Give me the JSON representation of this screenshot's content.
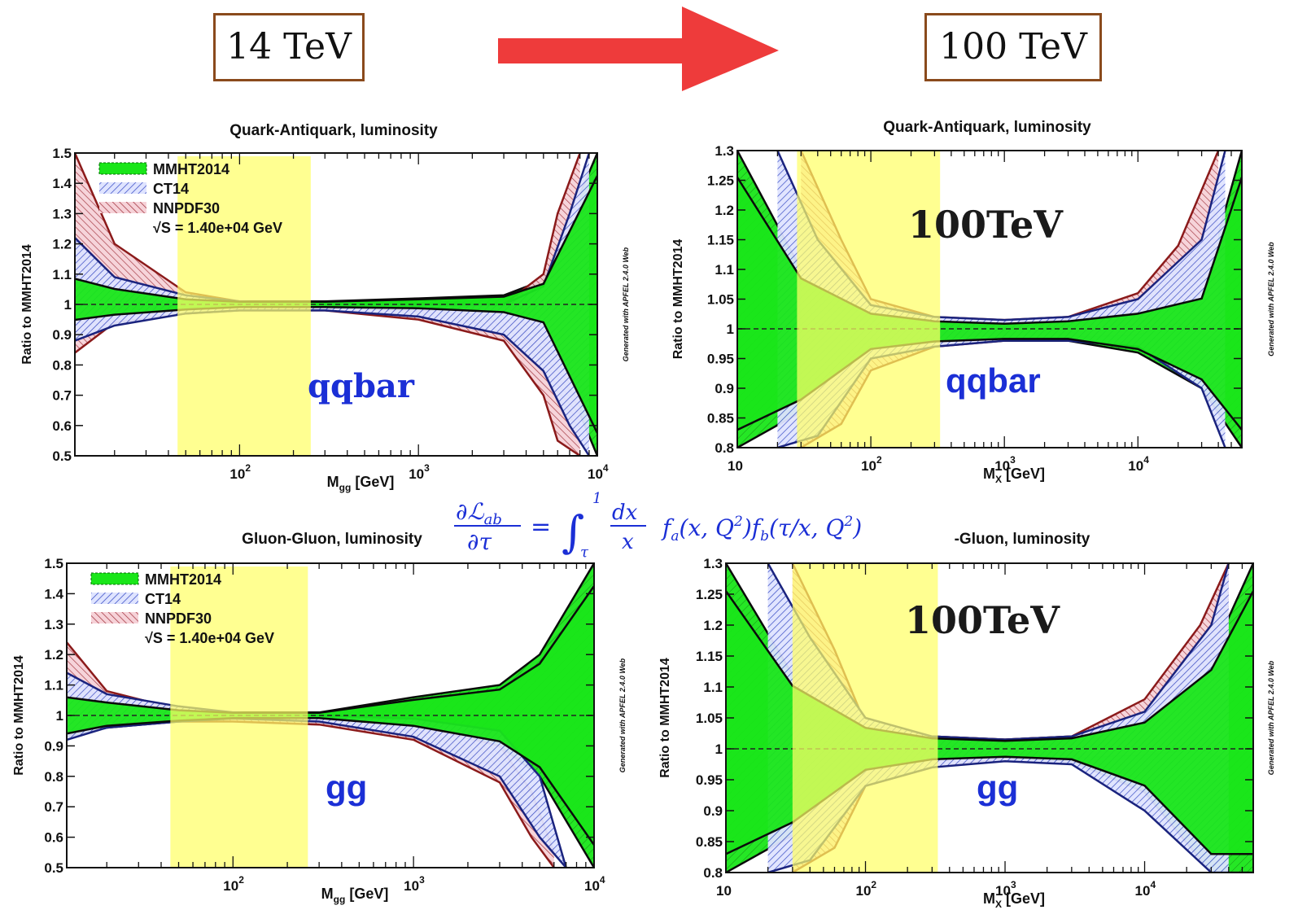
{
  "header": {
    "left_energy": "14 TeV",
    "right_energy": "100 TeV",
    "arrow_color": "#ee3b3b"
  },
  "formula": {
    "lhs_num": "∂ℒ",
    "lhs_num_sub": "ab",
    "lhs_den": "∂τ",
    "equals": "=",
    "integral": "∫",
    "upper": "1",
    "lower": "τ",
    "dx": "dx",
    "x": "x",
    "rhs": "f",
    "rhs_a": "a",
    "rhs_a_args": "(x, Q",
    "sq": "2",
    "rhs_b_prefix": ")f",
    "rhs_b": "b",
    "rhs_b_args": "(τ/x, Q",
    "close": ")"
  },
  "colors": {
    "mmht_fill": "#19e619",
    "mmht_line": "#0a0a0a",
    "ct14_line": "#1a237e",
    "ct14_fill": "#c8d2ff",
    "nnpdf_line": "#8b1a1a",
    "nnpdf_fill": "#f2c2c8",
    "highlight": "#ffff66",
    "label_blue": "#1b2fd6"
  },
  "chart_data": [
    {
      "id": "qq14",
      "type": "area",
      "title": "Quark-Antiquark, luminosity",
      "ylabel": "Ratio to MMHT2014",
      "xlabel_main": "M",
      "xlabel_sub": "gg",
      "xlabel_unit": "[GeV]",
      "xscale": "log",
      "xlim": [
        12,
        10000
      ],
      "ylim": [
        0.5,
        1.5
      ],
      "yticks": [
        "1.5",
        "1.4",
        "1.3",
        "1.2",
        "1.1",
        "1",
        "0.9",
        "0.8",
        "0.7",
        "0.6",
        "0.5"
      ],
      "xticks": [
        {
          "v": 100,
          "base": "10",
          "exp": "2"
        },
        {
          "v": 1000,
          "base": "10",
          "exp": "3"
        },
        {
          "v": 10000,
          "base": "10",
          "exp": "4"
        }
      ],
      "legend": [
        "MMHT2014",
        "CT14",
        "NNPDF30"
      ],
      "legend_sqrt": "S = 1.40e+04 GeV",
      "side_text": "Generated with APFEL 2.4.0 Web",
      "big_label": "qqbar",
      "highlight_range": [
        45,
        250
      ],
      "series": [
        {
          "name": "MMHT2014",
          "x": [
            12,
            20,
            50,
            100,
            300,
            1000,
            3000,
            5000,
            10000
          ],
          "upper": [
            1.1,
            1.06,
            1.02,
            1.01,
            1.01,
            1.02,
            1.03,
            1.08,
            1.5
          ],
          "lower": [
            0.94,
            0.96,
            0.98,
            0.99,
            0.99,
            0.985,
            0.97,
            0.93,
            0.5
          ]
        },
        {
          "name": "CT14",
          "x": [
            12,
            20,
            50,
            100,
            300,
            1000,
            3000,
            5000,
            7000,
            9000
          ],
          "upper": [
            1.22,
            1.09,
            1.03,
            1.01,
            1.0,
            1.0,
            1.0,
            1.06,
            1.3,
            1.5
          ],
          "lower": [
            0.88,
            0.93,
            0.97,
            0.98,
            0.98,
            0.96,
            0.9,
            0.78,
            0.6,
            0.5
          ]
        },
        {
          "name": "NNPDF30",
          "x": [
            12,
            20,
            50,
            100,
            300,
            1000,
            3000,
            5000,
            6000,
            8000
          ],
          "upper": [
            1.5,
            1.2,
            1.04,
            1.01,
            0.99,
            0.98,
            1.0,
            1.1,
            1.3,
            1.5
          ],
          "lower": [
            0.84,
            0.94,
            0.97,
            0.98,
            0.98,
            0.95,
            0.88,
            0.7,
            0.55,
            0.5
          ]
        }
      ]
    },
    {
      "id": "qq100",
      "type": "area",
      "title": "Quark-Antiquark, luminosity",
      "ylabel": "Ratio to MMHT2014",
      "xlabel_main": "M",
      "xlabel_sub": "X",
      "xlabel_unit": "[GeV]",
      "xscale": "log",
      "xlim": [
        10,
        60000
      ],
      "ylim": [
        0.8,
        1.3
      ],
      "yticks": [
        "1.3",
        "1.25",
        "1.2",
        "1.15",
        "1.1",
        "1.05",
        "1",
        "0.95",
        "0.9",
        "0.85",
        "0.8"
      ],
      "xticks": [
        {
          "v": 10,
          "base": "10",
          "exp": ""
        },
        {
          "v": 100,
          "base": "10",
          "exp": "2"
        },
        {
          "v": 1000,
          "base": "10",
          "exp": "3"
        },
        {
          "v": 10000,
          "base": "10",
          "exp": "4"
        }
      ],
      "side_text": "Generated with APFEL 2.4.0 Web",
      "big_label": "qqbar",
      "tev_label": "100TeV",
      "highlight_range": [
        28,
        330
      ],
      "series": [
        {
          "name": "MMHT2014",
          "x": [
            10,
            30,
            100,
            300,
            1000,
            3000,
            10000,
            30000,
            60000
          ],
          "upper": [
            1.3,
            1.1,
            1.03,
            1.015,
            1.01,
            1.015,
            1.03,
            1.06,
            1.3
          ],
          "lower": [
            0.8,
            0.86,
            0.96,
            0.975,
            0.98,
            0.98,
            0.96,
            0.9,
            0.8
          ]
        },
        {
          "name": "CT14",
          "x": [
            20,
            40,
            100,
            300,
            1000,
            3000,
            10000,
            30000,
            45000
          ],
          "upper": [
            1.3,
            1.15,
            1.04,
            1.02,
            1.015,
            1.02,
            1.05,
            1.15,
            1.3
          ],
          "lower": [
            0.8,
            0.82,
            0.95,
            0.97,
            0.98,
            0.98,
            0.97,
            0.9,
            0.8
          ]
        },
        {
          "name": "NNPDF30",
          "x": [
            30,
            60,
            100,
            300,
            1000,
            3000,
            10000,
            20000,
            40000
          ],
          "upper": [
            1.3,
            1.15,
            1.05,
            1.02,
            1.015,
            1.02,
            1.06,
            1.14,
            1.3
          ],
          "lower": [
            0.8,
            0.84,
            0.93,
            0.97,
            0.98,
            0.985,
            0.99,
            1.01,
            0.98
          ]
        }
      ]
    },
    {
      "id": "gg14",
      "type": "area",
      "title": "Gluon-Gluon, luminosity",
      "ylabel": "Ratio to MMHT2014",
      "xlabel_main": "M",
      "xlabel_sub": "gg",
      "xlabel_unit": "[GeV]",
      "xscale": "log",
      "xlim": [
        12,
        10000
      ],
      "ylim": [
        0.5,
        1.5
      ],
      "yticks": [
        "1.5",
        "1.4",
        "1.3",
        "1.2",
        "1.1",
        "1",
        "0.9",
        "0.8",
        "0.7",
        "0.6",
        "0.5"
      ],
      "xticks": [
        {
          "v": 100,
          "base": "10",
          "exp": "2"
        },
        {
          "v": 1000,
          "base": "10",
          "exp": "3"
        },
        {
          "v": 10000,
          "base": "10",
          "exp": "4"
        }
      ],
      "legend": [
        "MMHT2014",
        "CT14",
        "NNPDF30"
      ],
      "legend_sqrt": "S = 1.40e+04 GeV",
      "side_text": "Generated with APFEL 2.4.0 Web",
      "big_label": "gg",
      "highlight_range": [
        45,
        260
      ],
      "series": [
        {
          "name": "MMHT2014",
          "x": [
            12,
            20,
            50,
            100,
            300,
            1000,
            3000,
            5000,
            10000
          ],
          "upper": [
            1.07,
            1.05,
            1.02,
            1.01,
            1.01,
            1.06,
            1.1,
            1.2,
            1.5
          ],
          "lower": [
            0.93,
            0.96,
            0.98,
            0.99,
            0.99,
            0.96,
            0.9,
            0.8,
            0.5
          ]
        },
        {
          "name": "CT14",
          "x": [
            12,
            20,
            50,
            100,
            300,
            1000,
            3000,
            5000,
            7000
          ],
          "upper": [
            1.14,
            1.07,
            1.03,
            1.01,
            1.0,
            0.99,
            0.95,
            0.8,
            0.5
          ],
          "lower": [
            0.92,
            0.96,
            0.98,
            0.99,
            0.98,
            0.93,
            0.8,
            0.6,
            0.5
          ]
        },
        {
          "name": "NNPDF30",
          "x": [
            12,
            20,
            50,
            100,
            300,
            1000,
            3000,
            4500,
            6000
          ],
          "upper": [
            1.24,
            1.08,
            1.02,
            1.0,
            0.99,
            0.97,
            0.9,
            0.75,
            0.55
          ],
          "lower": [
            0.95,
            0.97,
            0.98,
            0.98,
            0.97,
            0.92,
            0.78,
            0.6,
            0.5
          ]
        }
      ]
    },
    {
      "id": "gg100",
      "type": "area",
      "title": "-Gluon, luminosity",
      "ylabel": "Ratio to MMHT2014",
      "xlabel_main": "M",
      "xlabel_sub": "X",
      "xlabel_unit": "[GeV]",
      "xscale": "log",
      "xlim": [
        10,
        60000
      ],
      "ylim": [
        0.8,
        1.3
      ],
      "yticks": [
        "1.3",
        "1.25",
        "1.2",
        "1.15",
        "1.1",
        "1.05",
        "1",
        "0.95",
        "0.9",
        "0.85",
        "0.8"
      ],
      "xticks": [
        {
          "v": 10,
          "base": "10",
          "exp": ""
        },
        {
          "v": 100,
          "base": "10",
          "exp": "2"
        },
        {
          "v": 1000,
          "base": "10",
          "exp": "3"
        },
        {
          "v": 10000,
          "base": "10",
          "exp": "4"
        }
      ],
      "side_text": "Generated with APFEL 2.4.0 Web",
      "big_label": "gg",
      "tev_label": "100TeV",
      "highlight_range": [
        30,
        330
      ],
      "series": [
        {
          "name": "MMHT2014",
          "x": [
            10,
            30,
            100,
            300,
            1000,
            3000,
            10000,
            30000,
            60000
          ],
          "upper": [
            1.3,
            1.12,
            1.04,
            1.02,
            1.015,
            1.02,
            1.05,
            1.15,
            1.3
          ],
          "lower": [
            0.8,
            0.86,
            0.96,
            0.98,
            0.985,
            0.98,
            0.93,
            0.8,
            0.8
          ]
        },
        {
          "name": "CT14",
          "x": [
            20,
            40,
            100,
            300,
            1000,
            3000,
            10000,
            30000,
            40000
          ],
          "upper": [
            1.3,
            1.18,
            1.05,
            1.02,
            1.015,
            1.02,
            1.06,
            1.2,
            1.3
          ],
          "lower": [
            0.8,
            0.82,
            0.94,
            0.97,
            0.98,
            0.975,
            0.9,
            0.8,
            0.8
          ]
        },
        {
          "name": "NNPDF30",
          "x": [
            30,
            60,
            100,
            300,
            1000,
            3000,
            10000,
            25000,
            40000
          ],
          "upper": [
            1.3,
            1.16,
            1.04,
            1.02,
            1.015,
            1.02,
            1.08,
            1.2,
            1.3
          ],
          "lower": [
            0.8,
            0.84,
            0.94,
            0.97,
            0.985,
            0.985,
            0.99,
            1.0,
            0.98
          ]
        }
      ]
    }
  ]
}
